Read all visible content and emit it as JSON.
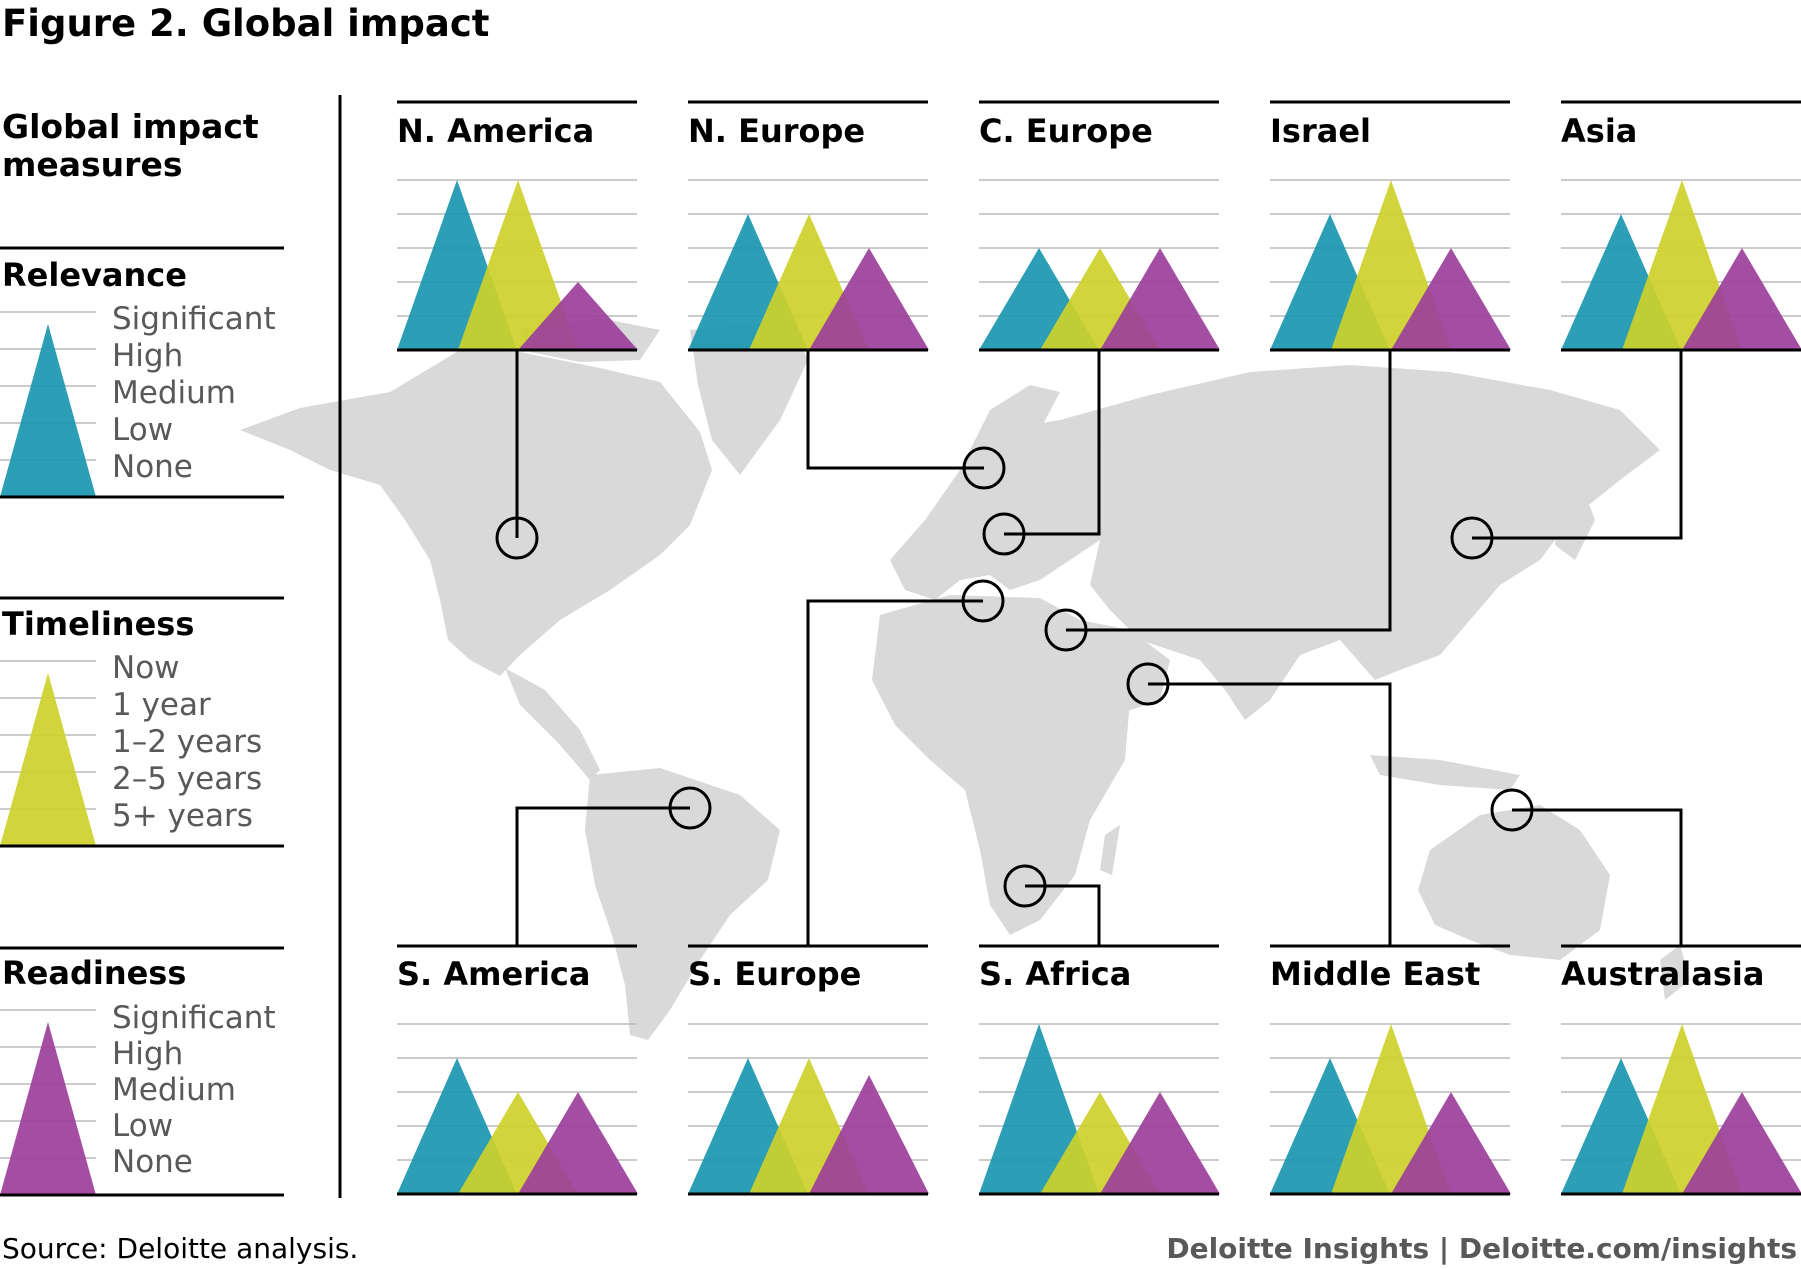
{
  "title": "Figure 2. Global impact",
  "legend": {
    "heading": "Global impact measures",
    "measures": [
      {
        "name": "Relevance",
        "color": "#1a96b0",
        "levels": [
          "Significant",
          "High",
          "Medium",
          "Low",
          "None"
        ]
      },
      {
        "name": "Timeliness",
        "color": "#cdd12a",
        "levels": [
          "Now",
          "1 year",
          "1–2 years",
          "2–5 years",
          "5+ years"
        ]
      },
      {
        "name": "Readiness",
        "color": "#9c3f9b",
        "levels": [
          "Significant",
          "High",
          "Medium",
          "Low",
          "None"
        ]
      }
    ]
  },
  "source": "Source: Deloitte analysis.",
  "credit": "Deloitte Insights | Deloitte.com/insights",
  "colors": {
    "relevance": "#1a96b0",
    "timeliness": "#cdd12a",
    "readiness": "#9c3f9b",
    "map": "#d9d9d9",
    "grid": "#bcbcbc"
  },
  "chart_data": {
    "type": "triangle-glyph-panels",
    "scale_max": 5,
    "series": [
      "Relevance",
      "Timeliness",
      "Readiness"
    ],
    "regions": [
      {
        "name": "N. America",
        "relevance": 5,
        "timeliness": 5,
        "readiness": 2
      },
      {
        "name": "N. Europe",
        "relevance": 4,
        "timeliness": 4,
        "readiness": 3
      },
      {
        "name": "C. Europe",
        "relevance": 3,
        "timeliness": 3,
        "readiness": 3
      },
      {
        "name": "Israel",
        "relevance": 4,
        "timeliness": 5,
        "readiness": 3
      },
      {
        "name": "Asia",
        "relevance": 4,
        "timeliness": 5,
        "readiness": 3
      },
      {
        "name": "S. America",
        "relevance": 4,
        "timeliness": 3,
        "readiness": 3
      },
      {
        "name": "S. Europe",
        "relevance": 4,
        "timeliness": 4,
        "readiness": 3.5
      },
      {
        "name": "S. Africa",
        "relevance": 5,
        "timeliness": 3,
        "readiness": 3
      },
      {
        "name": "Middle East",
        "relevance": 4,
        "timeliness": 5,
        "readiness": 3
      },
      {
        "name": "Australasia",
        "relevance": 4,
        "timeliness": 5,
        "readiness": 3
      }
    ]
  }
}
